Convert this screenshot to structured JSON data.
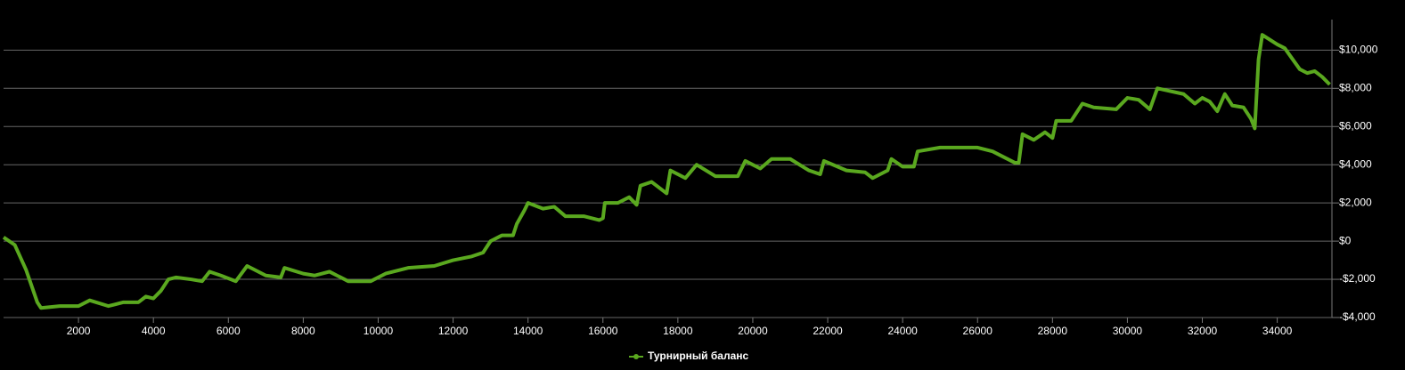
{
  "chart_data": {
    "type": "line",
    "x": [
      0,
      300,
      600,
      900,
      1000,
      1500,
      2000,
      2300,
      2800,
      3200,
      3600,
      3800,
      4000,
      4200,
      4400,
      4600,
      5000,
      5300,
      5500,
      5800,
      6200,
      6500,
      7000,
      7400,
      7500,
      8000,
      8300,
      8700,
      9200,
      9800,
      10200,
      10800,
      11500,
      12000,
      12500,
      12800,
      13000,
      13300,
      13600,
      13700,
      13900,
      14000,
      14400,
      14700,
      15000,
      15500,
      15900,
      16000,
      16050,
      16400,
      16700,
      16900,
      17000,
      17300,
      17700,
      17800,
      18200,
      18500,
      19000,
      19600,
      19800,
      20200,
      20500,
      21000,
      21500,
      21800,
      21900,
      22500,
      23000,
      23200,
      23600,
      23700,
      24000,
      24300,
      24400,
      25000,
      25500,
      26000,
      26400,
      27000,
      27100,
      27200,
      27500,
      27800,
      28000,
      28100,
      28500,
      28800,
      29100,
      29700,
      30000,
      30300,
      30600,
      30800,
      31500,
      31800,
      32000,
      32200,
      32400,
      32600,
      32800,
      33100,
      33300,
      33400,
      33500,
      33600,
      34000,
      34200,
      34600,
      34800,
      35000,
      35200,
      35400
    ],
    "series": [
      {
        "name": "Турнирный баланс",
        "color": "#5aa81f",
        "values": [
          200,
          -200,
          -1500,
          -3200,
          -3500,
          -3400,
          -3400,
          -3100,
          -3400,
          -3200,
          -3200,
          -2900,
          -3000,
          -2600,
          -2000,
          -1900,
          -2000,
          -2100,
          -1600,
          -1800,
          -2100,
          -1300,
          -1800,
          -1900,
          -1400,
          -1700,
          -1800,
          -1600,
          -2100,
          -2100,
          -1700,
          -1400,
          -1300,
          -1000,
          -800,
          -600,
          0,
          300,
          300,
          900,
          1600,
          2000,
          1700,
          1800,
          1300,
          1300,
          1100,
          1200,
          2000,
          2000,
          2300,
          1900,
          2900,
          3100,
          2500,
          3700,
          3300,
          4000,
          3400,
          3400,
          4200,
          3800,
          4300,
          4300,
          3700,
          3500,
          4200,
          3700,
          3600,
          3300,
          3700,
          4300,
          3900,
          3900,
          4700,
          4900,
          4900,
          4900,
          4700,
          4100,
          4100,
          5600,
          5300,
          5700,
          5400,
          6300,
          6300,
          7200,
          7000,
          6900,
          7500,
          7400,
          6900,
          8000,
          7700,
          7200,
          7500,
          7300,
          6800,
          7700,
          7100,
          7000,
          6400,
          5900,
          9500,
          10800,
          10300,
          10100,
          9000,
          8800,
          8900,
          8600,
          8200
        ]
      }
    ],
    "xlim": [
      0,
      35460
    ],
    "ylim": [
      -4000,
      11600
    ],
    "xticks": [
      2000,
      4000,
      6000,
      8000,
      10000,
      12000,
      14000,
      16000,
      18000,
      20000,
      22000,
      24000,
      26000,
      28000,
      30000,
      32000,
      34000
    ],
    "yticks": [
      {
        "value": -4000,
        "label": "-$4,000"
      },
      {
        "value": -2000,
        "label": "-$2,000"
      },
      {
        "value": 0,
        "label": "$0"
      },
      {
        "value": 2000,
        "label": "$2,000"
      },
      {
        "value": 4000,
        "label": "$4,000"
      },
      {
        "value": 6000,
        "label": "$6,000"
      },
      {
        "value": 8000,
        "label": "$8,000"
      },
      {
        "value": 10000,
        "label": "$10,000"
      }
    ],
    "grid": true
  }
}
